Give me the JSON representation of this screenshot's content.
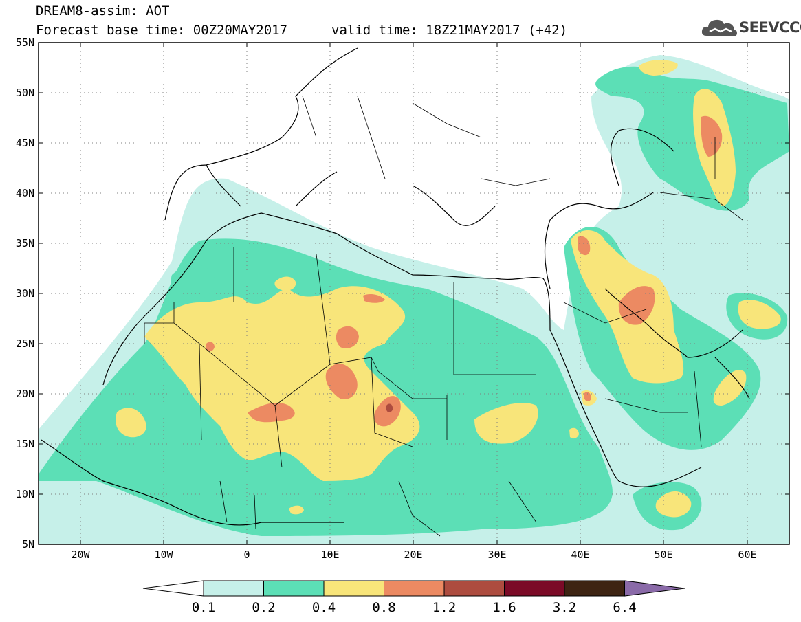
{
  "header": {
    "model_line": "DREAM8-assim: AOT",
    "base_time": "Forecast base time: 00Z20MAY2017",
    "valid_time": "valid time: 18Z21MAY2017 (+42)"
  },
  "logo": {
    "text": "SEEVCCC",
    "icon": "cloud-logo-icon"
  },
  "map": {
    "field": "AOT",
    "lon_range": [
      -25,
      65
    ],
    "lat_range": [
      5,
      55
    ],
    "lon_ticks": [
      "20W",
      "10W",
      "0",
      "10E",
      "20E",
      "30E",
      "40E",
      "50E",
      "60E"
    ],
    "lat_ticks": [
      "55N",
      "50N",
      "45N",
      "40N",
      "35N",
      "30N",
      "25N",
      "20N",
      "15N",
      "10N",
      "5N"
    ],
    "grid": "dotted"
  },
  "colorbar": {
    "labels": [
      "0.1",
      "0.2",
      "0.4",
      "0.8",
      "1.2",
      "1.6",
      "3.2",
      "6.4"
    ],
    "colors": [
      "#ffffff",
      "#c6f0e9",
      "#5cdfb6",
      "#f8e57a",
      "#ec8a62",
      "#ad4c3f",
      "#7b0a27",
      "#3e2413",
      "#8a6aa8"
    ]
  }
}
